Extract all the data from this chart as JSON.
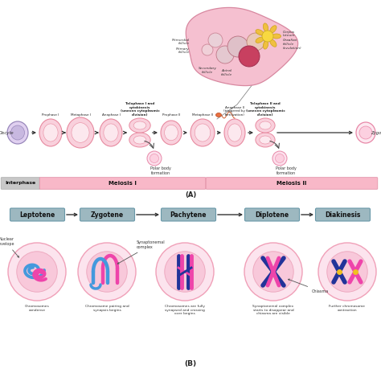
{
  "bg_color": "#ffffff",
  "phase_bar_meiosis_color": "#f8b8c8",
  "top_labels": [
    "Prophase I",
    "Metaphase I",
    "Anaphase I",
    "Telophase I and\ncytokinesis\n(uneven cytoplasmic\ndivision)",
    "Prophase II",
    "Metaphase II",
    "Anaphase II\n(triggered by\nfertilization)",
    "Telophase II and\ncytokinesis\n(uneven cytoplasmic\ndivision)"
  ],
  "cell_color_outer": "#f9d0dc",
  "cell_color_inner": "#fce8ee",
  "cell_border_color": "#e88aa0",
  "stage_B_labels": [
    "Leptotene",
    "Zygotene",
    "Pachytene",
    "Diplotene",
    "Diakinesis"
  ],
  "cell_desc": [
    "Chromosomes\ncondense",
    "Chromosome pairing and\nsynapsis begins",
    "Chromosomes are fully\nsynapsed and crossing\nover begins",
    "Synaptonemal complex\nstarts to disappear and\nchiasma are visible",
    "Further chromosome\ncontraction"
  ],
  "blue_chr": "#4499dd",
  "magenta_chr": "#ee44aa",
  "navy_chr": "#223399",
  "pink_chr": "#ee88aa"
}
